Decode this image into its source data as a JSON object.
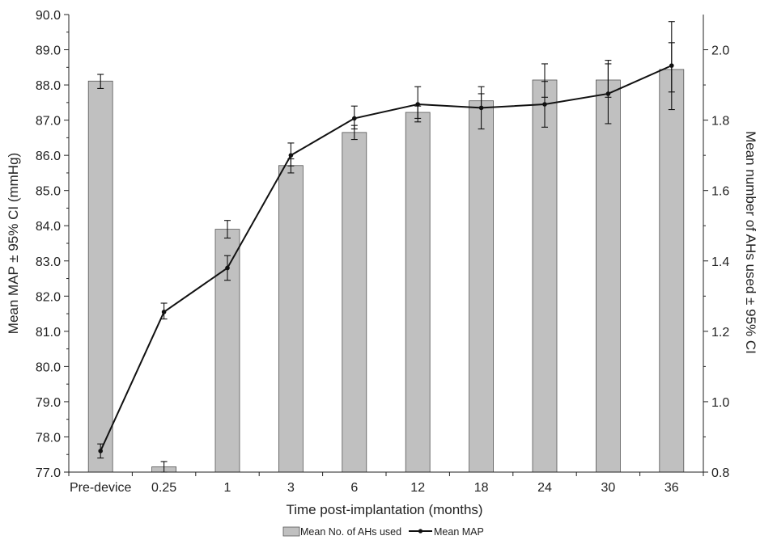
{
  "chart_data": {
    "type": "bar",
    "categories": [
      "Pre-device",
      "0.25",
      "1",
      "3",
      "6",
      "12",
      "18",
      "24",
      "30",
      "36"
    ],
    "xlabel": "Time post-implantation (months)",
    "ylabel_left": "Mean MAP ± 95% CI (mmHg)",
    "ylabel_right": "Mean number of AHs used ± 95% CI",
    "ylim_left": [
      77.0,
      90.0
    ],
    "ylim_right": [
      0.8,
      2.1
    ],
    "yticks_left": [
      "77.0",
      "78.0",
      "79.0",
      "80.0",
      "81.0",
      "82.0",
      "83.0",
      "84.0",
      "85.0",
      "86.0",
      "87.0",
      "88.0",
      "89.0",
      "90.0"
    ],
    "yticks_right": [
      "0.8",
      "1.0",
      "1.2",
      "1.4",
      "1.6",
      "1.8",
      "2.0"
    ],
    "bar_series": {
      "name": "Mean No. of AHs used",
      "axis": "right",
      "color": "#c0c0c0",
      "values": [
        1.911,
        0.815,
        1.49,
        1.671,
        1.765,
        1.822,
        1.855,
        1.914,
        1.914,
        1.944
      ],
      "ci_low": [
        1.89,
        0.8,
        1.465,
        1.65,
        1.745,
        1.805,
        1.835,
        1.865,
        1.865,
        1.88
      ],
      "ci_high": [
        1.93,
        0.83,
        1.515,
        1.69,
        1.785,
        1.84,
        1.875,
        1.96,
        1.97,
        2.02
      ]
    },
    "line_series": {
      "name": "Mean MAP",
      "axis": "left",
      "color": "#111111",
      "values": [
        77.6,
        81.55,
        82.8,
        86.0,
        87.05,
        87.45,
        87.35,
        87.45,
        87.75,
        88.55
      ],
      "ci_low": [
        77.4,
        81.35,
        82.45,
        85.7,
        86.75,
        86.95,
        86.75,
        86.8,
        86.9,
        87.3
      ],
      "ci_high": [
        77.8,
        81.8,
        83.15,
        86.35,
        87.4,
        87.95,
        87.95,
        88.1,
        88.6,
        89.8
      ]
    },
    "legend": {
      "position": "bottom",
      "entries": [
        "Mean No. of AHs used",
        "Mean MAP"
      ]
    },
    "grid": false
  }
}
